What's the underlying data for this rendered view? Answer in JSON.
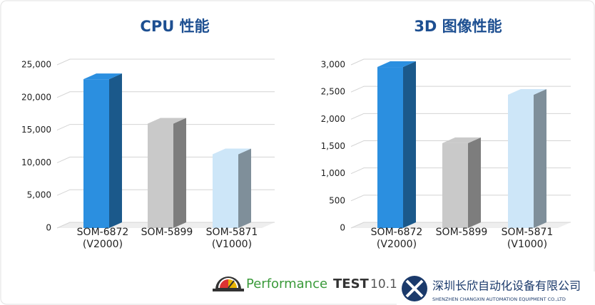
{
  "chart_data": [
    {
      "type": "bar3d",
      "title": "CPU 性能",
      "categories": [
        "SOM-6872\n(V2000)",
        "SOM-5899",
        "SOM-5871\n(V1000)"
      ],
      "values": [
        22800,
        16000,
        11300
      ],
      "colors": [
        "#2b8fe0",
        "#c9c9c9",
        "#cde6f8"
      ],
      "ylim": [
        0,
        25000
      ],
      "yticks": [
        0,
        {
          "value": 5000,
          "label": "5,000"
        },
        {
          "value": 10000,
          "label": "10,000"
        },
        {
          "value": 15000,
          "label": "15,000"
        },
        {
          "value": 20000,
          "label": "20,000"
        },
        {
          "value": 25000,
          "label": "25,000"
        }
      ],
      "grid": true
    },
    {
      "type": "bar3d",
      "title": "3D 图像性能",
      "categories": [
        "SOM-6872\n(V2000)",
        "SOM-5899",
        "SOM-5871\n(V1000)"
      ],
      "values": [
        2960,
        1560,
        2450
      ],
      "colors": [
        "#2b8fe0",
        "#c9c9c9",
        "#cde6f8"
      ],
      "ylim": [
        0,
        3000
      ],
      "yticks": [
        0,
        {
          "value": 500,
          "label": "500"
        },
        {
          "value": 1000,
          "label": "1,000"
        },
        {
          "value": 1500,
          "label": "1,500"
        },
        {
          "value": 2000,
          "label": "2,000"
        },
        {
          "value": 2500,
          "label": "2,500"
        },
        {
          "value": 3000,
          "label": "3,000"
        }
      ],
      "grid": true
    }
  ],
  "footer": {
    "brand_a": "Performance",
    "brand_b": "TEST",
    "version": "10.1",
    "company": "深圳长欣自动化设备有限公司",
    "company_en": "SHENZHEN CHANGXIN AUTOMATION EQUIPMENT CO.,LTD"
  }
}
